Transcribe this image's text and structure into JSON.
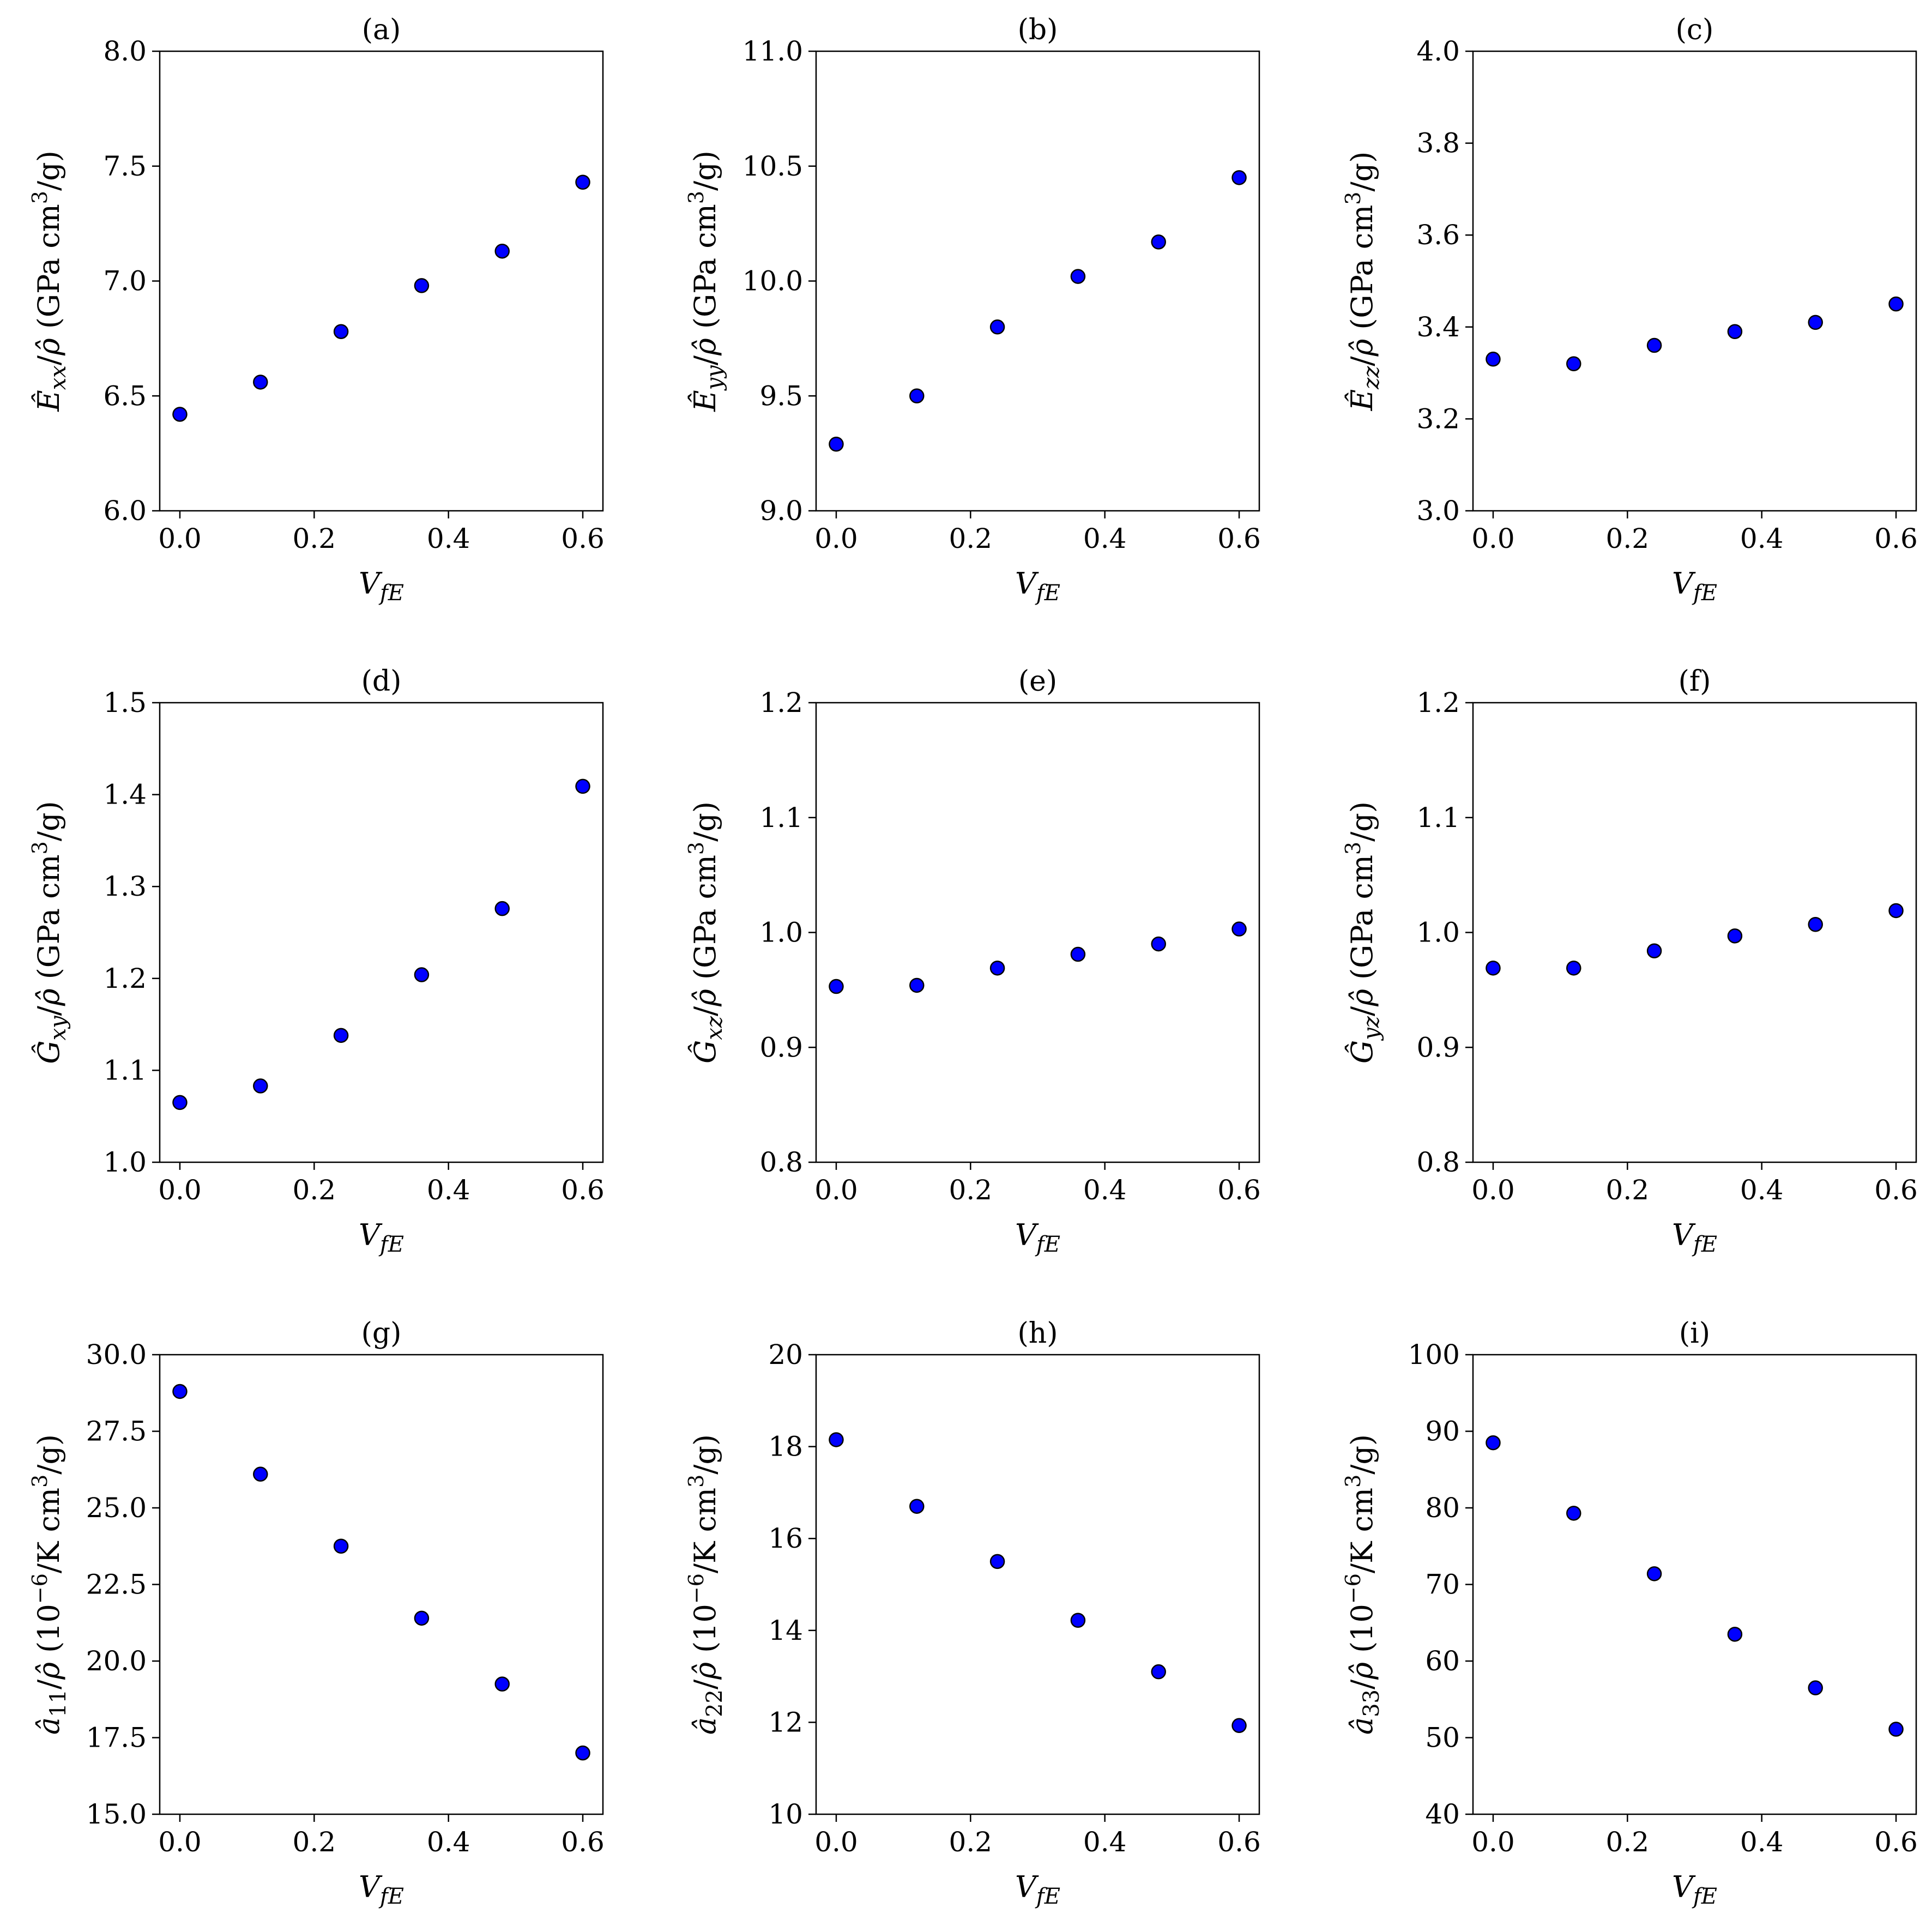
{
  "chart_data": [
    {
      "type": "scatter",
      "title": "(a)",
      "xlabel": "V_fE",
      "ylabel": "Ê_xx/ρ̂ (GPa cm³/g)",
      "x": [
        0.0,
        0.12,
        0.24,
        0.36,
        0.48,
        0.6
      ],
      "y": [
        6.42,
        6.56,
        6.78,
        6.98,
        7.13,
        7.43
      ],
      "xlim": [
        -0.03,
        0.63
      ],
      "ylim": [
        6.0,
        8.0
      ],
      "xticks": [
        "0.0",
        "0.2",
        "0.4",
        "0.6"
      ],
      "yticks": [
        "6.0",
        "6.5",
        "7.0",
        "7.5",
        "8.0"
      ],
      "label": {
        "base": "Ê",
        "sub": "xx",
        "unit_pre": "(GPa cm",
        "sup": "3",
        "unit_post": "/g)"
      },
      "marker_color": "#0000ff"
    },
    {
      "type": "scatter",
      "title": "(b)",
      "xlabel": "V_fE",
      "ylabel": "Ê_yy/ρ̂ (GPa cm³/g)",
      "x": [
        0.0,
        0.12,
        0.24,
        0.36,
        0.48,
        0.6
      ],
      "y": [
        9.29,
        9.5,
        9.8,
        10.02,
        10.17,
        10.45
      ],
      "xlim": [
        -0.03,
        0.63
      ],
      "ylim": [
        9.0,
        11.0
      ],
      "xticks": [
        "0.0",
        "0.2",
        "0.4",
        "0.6"
      ],
      "yticks": [
        "9.0",
        "9.5",
        "10.0",
        "10.5",
        "11.0"
      ],
      "label": {
        "base": "Ê",
        "sub": "yy",
        "unit_pre": "(GPa cm",
        "sup": "3",
        "unit_post": "/g)"
      },
      "marker_color": "#0000ff"
    },
    {
      "type": "scatter",
      "title": "(c)",
      "xlabel": "V_fE",
      "ylabel": "Ê_zz/ρ̂ (GPa cm³/g)",
      "x": [
        0.0,
        0.12,
        0.24,
        0.36,
        0.48,
        0.6
      ],
      "y": [
        3.33,
        3.32,
        3.36,
        3.39,
        3.41,
        3.45
      ],
      "xlim": [
        -0.03,
        0.63
      ],
      "ylim": [
        3.0,
        4.0
      ],
      "xticks": [
        "0.0",
        "0.2",
        "0.4",
        "0.6"
      ],
      "yticks": [
        "3.0",
        "3.2",
        "3.4",
        "3.6",
        "3.8",
        "4.0"
      ],
      "label": {
        "base": "Ê",
        "sub": "zz",
        "unit_pre": "(GPa cm",
        "sup": "3",
        "unit_post": "/g)"
      },
      "marker_color": "#0000ff"
    },
    {
      "type": "scatter",
      "title": "(d)",
      "xlabel": "V_fE",
      "ylabel": "Ĝ_xy/ρ̂ (GPa cm³/g)",
      "x": [
        0.0,
        0.12,
        0.24,
        0.36,
        0.48,
        0.6
      ],
      "y": [
        1.065,
        1.083,
        1.138,
        1.204,
        1.276,
        1.409
      ],
      "xlim": [
        -0.03,
        0.63
      ],
      "ylim": [
        1.0,
        1.5
      ],
      "xticks": [
        "0.0",
        "0.2",
        "0.4",
        "0.6"
      ],
      "yticks": [
        "1.0",
        "1.1",
        "1.2",
        "1.3",
        "1.4",
        "1.5"
      ],
      "label": {
        "base": "Ĝ",
        "sub": "xy",
        "unit_pre": "(GPa cm",
        "sup": "3",
        "unit_post": "/g)"
      },
      "marker_color": "#0000ff"
    },
    {
      "type": "scatter",
      "title": "(e)",
      "xlabel": "V_fE",
      "ylabel": "Ĝ_xz/ρ̂ (GPa cm³/g)",
      "x": [
        0.0,
        0.12,
        0.24,
        0.36,
        0.48,
        0.6
      ],
      "y": [
        0.953,
        0.954,
        0.969,
        0.981,
        0.99,
        1.003
      ],
      "xlim": [
        -0.03,
        0.63
      ],
      "ylim": [
        0.8,
        1.2
      ],
      "xticks": [
        "0.0",
        "0.2",
        "0.4",
        "0.6"
      ],
      "yticks": [
        "0.8",
        "0.9",
        "1.0",
        "1.1",
        "1.2"
      ],
      "label": {
        "base": "Ĝ",
        "sub": "xz",
        "unit_pre": "(GPa cm",
        "sup": "3",
        "unit_post": "/g)"
      },
      "marker_color": "#0000ff"
    },
    {
      "type": "scatter",
      "title": "(f)",
      "xlabel": "V_fE",
      "ylabel": "Ĝ_yz/ρ̂ (GPa cm³/g)",
      "x": [
        0.0,
        0.12,
        0.24,
        0.36,
        0.48,
        0.6
      ],
      "y": [
        0.969,
        0.969,
        0.984,
        0.997,
        1.007,
        1.019
      ],
      "xlim": [
        -0.03,
        0.63
      ],
      "ylim": [
        0.8,
        1.2
      ],
      "xticks": [
        "0.0",
        "0.2",
        "0.4",
        "0.6"
      ],
      "yticks": [
        "0.8",
        "0.9",
        "1.0",
        "1.1",
        "1.2"
      ],
      "label": {
        "base": "Ĝ",
        "sub": "yz",
        "unit_pre": "(GPa cm",
        "sup": "3",
        "unit_post": "/g)"
      },
      "marker_color": "#0000ff"
    },
    {
      "type": "scatter",
      "title": "(g)",
      "xlabel": "V_fE",
      "ylabel": "â_11/ρ̂ (10⁻⁶/K cm³/g)",
      "x": [
        0.0,
        0.12,
        0.24,
        0.36,
        0.48,
        0.6
      ],
      "y": [
        28.8,
        26.1,
        23.75,
        21.4,
        19.25,
        17.0
      ],
      "xlim": [
        -0.03,
        0.63
      ],
      "ylim": [
        15.0,
        30.0
      ],
      "xticks": [
        "0.0",
        "0.2",
        "0.4",
        "0.6"
      ],
      "yticks": [
        "15.0",
        "17.5",
        "20.0",
        "22.5",
        "25.0",
        "27.5",
        "30.0"
      ],
      "label": {
        "base": "â",
        "sub": "11",
        "unit_pre": "(10",
        "sup": "−6",
        "unit_mid": "/K cm",
        "sup2": "3",
        "unit_post": "/g)"
      },
      "marker_color": "#0000ff"
    },
    {
      "type": "scatter",
      "title": "(h)",
      "xlabel": "V_fE",
      "ylabel": "â_22/ρ̂ (10⁻⁶/K cm³/g)",
      "x": [
        0.0,
        0.12,
        0.24,
        0.36,
        0.48,
        0.6
      ],
      "y": [
        18.15,
        16.7,
        15.5,
        14.22,
        13.1,
        11.93
      ],
      "xlim": [
        -0.03,
        0.63
      ],
      "ylim": [
        10,
        20
      ],
      "xticks": [
        "0.0",
        "0.2",
        "0.4",
        "0.6"
      ],
      "yticks": [
        "10",
        "12",
        "14",
        "16",
        "18",
        "20"
      ],
      "label": {
        "base": "â",
        "sub": "22",
        "unit_pre": "(10",
        "sup": "−6",
        "unit_mid": "/K cm",
        "sup2": "3",
        "unit_post": "/g)"
      },
      "marker_color": "#0000ff"
    },
    {
      "type": "scatter",
      "title": "(i)",
      "xlabel": "V_fE",
      "ylabel": "â_33/ρ̂ (10⁻⁶/K cm³/g)",
      "x": [
        0.0,
        0.12,
        0.24,
        0.36,
        0.48,
        0.6
      ],
      "y": [
        88.5,
        79.3,
        71.4,
        63.5,
        56.5,
        51.1
      ],
      "xlim": [
        -0.03,
        0.63
      ],
      "ylim": [
        40,
        100
      ],
      "xticks": [
        "0.0",
        "0.2",
        "0.4",
        "0.6"
      ],
      "yticks": [
        "40",
        "50",
        "60",
        "70",
        "80",
        "90",
        "100"
      ],
      "label": {
        "base": "â",
        "sub": "33",
        "unit_pre": "(10",
        "sup": "−6",
        "unit_mid": "/K cm",
        "sup2": "3",
        "unit_post": "/g)"
      },
      "marker_color": "#0000ff"
    }
  ]
}
